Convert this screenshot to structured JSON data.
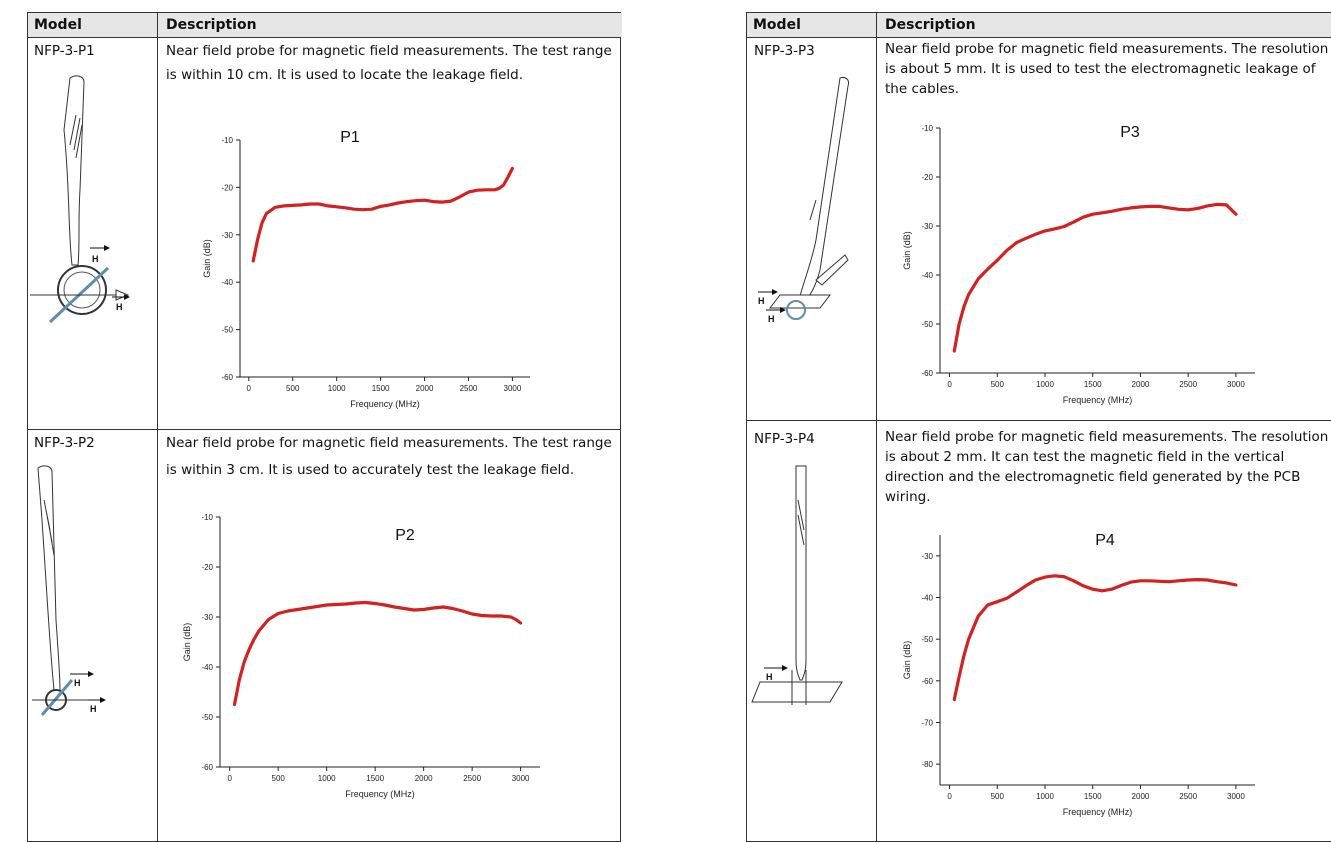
{
  "headers": {
    "model": "Model",
    "description": "Description"
  },
  "products": [
    {
      "model": "NFP-3-P1",
      "description": "Near field probe for magnetic field measurements. The test range is within 10 cm. It is used to locate the leakage field.",
      "desc_lines": [
        "Near field probe for magnetic field measurements. The test range",
        "is within 10 cm. It is used to locate the leakage field."
      ]
    },
    {
      "model": "NFP-3-P2",
      "description": "Near field probe for magnetic field measurements. The test range is within 3 cm. It is used to accurately test the leakage field.",
      "desc_lines": [
        "Near field probe for magnetic field measurements. The test range",
        "is within 3 cm. It is used to accurately test the leakage field."
      ]
    },
    {
      "model": "NFP-3-P3",
      "description": "Near field probe for magnetic field measurements. The resolution is about 5 mm. It is used to test the electromagnetic leakage of the cables.",
      "desc_lines": [
        "Near field probe for magnetic field measurements. The resolution",
        "is about 5 mm. It is used to test the electromagnetic leakage of",
        "the cables."
      ]
    },
    {
      "model": "NFP-3-P4",
      "description": "Near field probe for magnetic field measurements. The resolution is about 2 mm. It can test the magnetic field in the vertical direction and the electromagnetic field generated by the PCB wiring.",
      "desc_lines": [
        "Near field probe for magnetic field measurements. The resolution",
        "is about 2 mm. It can test the magnetic field in the vertical",
        "direction and the electromagnetic field generated by the PCB",
        "wiring."
      ]
    }
  ],
  "h_label": "H",
  "chart_data": [
    {
      "type": "line",
      "title": "P1",
      "xlabel": "Frequency (MHz)",
      "ylabel": "Gain (dB)",
      "xlim": [
        -100,
        3200
      ],
      "ylim": [
        -60,
        -10
      ],
      "xticks": [
        0,
        500,
        1000,
        1500,
        2000,
        2500,
        3000
      ],
      "yticks": [
        -10,
        -20,
        -30,
        -40,
        -50,
        -60
      ],
      "color": "#d42020",
      "grid": false,
      "x": [
        50,
        100,
        150,
        200,
        300,
        400,
        500,
        600,
        700,
        800,
        900,
        1000,
        1100,
        1200,
        1300,
        1400,
        1500,
        1600,
        1700,
        1800,
        1900,
        2000,
        2100,
        2200,
        2300,
        2400,
        2500,
        2600,
        2700,
        2800,
        2850,
        2900,
        2950,
        3000
      ],
      "y": [
        -35.5,
        -31,
        -27.5,
        -25.5,
        -24.2,
        -23.9,
        -23.8,
        -23.7,
        -23.5,
        -23.5,
        -23.9,
        -24.1,
        -24.3,
        -24.6,
        -24.7,
        -24.6,
        -24.0,
        -23.7,
        -23.3,
        -23.0,
        -22.8,
        -22.7,
        -23.0,
        -23.1,
        -22.9,
        -22.0,
        -21.0,
        -20.6,
        -20.5,
        -20.5,
        -20.2,
        -19.5,
        -17.8,
        -16.0
      ]
    },
    {
      "type": "line",
      "title": "P2",
      "xlabel": "Frequency (MHz)",
      "ylabel": "Gain (dB)",
      "xlim": [
        -100,
        3200
      ],
      "ylim": [
        -60,
        -10
      ],
      "xticks": [
        0,
        500,
        1000,
        1500,
        2000,
        2500,
        3000
      ],
      "yticks": [
        -10,
        -20,
        -30,
        -40,
        -50,
        -60
      ],
      "color": "#d42020",
      "grid": false,
      "x": [
        50,
        100,
        150,
        200,
        250,
        300,
        400,
        500,
        600,
        700,
        800,
        900,
        1000,
        1100,
        1200,
        1300,
        1400,
        1500,
        1600,
        1700,
        1800,
        1900,
        2000,
        2100,
        2200,
        2300,
        2400,
        2500,
        2600,
        2700,
        2800,
        2900,
        2950,
        3000
      ],
      "y": [
        -47.5,
        -42.5,
        -39,
        -36.5,
        -34.5,
        -32.8,
        -30.5,
        -29.3,
        -28.8,
        -28.5,
        -28.2,
        -27.9,
        -27.6,
        -27.5,
        -27.4,
        -27.2,
        -27.1,
        -27.3,
        -27.6,
        -28.0,
        -28.3,
        -28.6,
        -28.5,
        -28.2,
        -28.0,
        -28.3,
        -28.8,
        -29.4,
        -29.7,
        -29.8,
        -29.8,
        -30.0,
        -30.5,
        -31.2
      ]
    },
    {
      "type": "line",
      "title": "P3",
      "xlabel": "Frequency (MHz)",
      "ylabel": "Gain (dB)",
      "xlim": [
        -100,
        3200
      ],
      "ylim": [
        -60,
        -10
      ],
      "xticks": [
        0,
        500,
        1000,
        1500,
        2000,
        2500,
        3000
      ],
      "yticks": [
        -10,
        -20,
        -30,
        -40,
        -50,
        -60
      ],
      "color": "#d42020",
      "grid": false,
      "x": [
        50,
        100,
        150,
        200,
        300,
        400,
        500,
        600,
        700,
        800,
        900,
        1000,
        1100,
        1200,
        1300,
        1400,
        1500,
        1600,
        1700,
        1800,
        1900,
        2000,
        2100,
        2200,
        2300,
        2400,
        2500,
        2600,
        2700,
        2800,
        2900,
        3000
      ],
      "y": [
        -55.5,
        -50,
        -46.5,
        -44,
        -40.8,
        -38.8,
        -37.0,
        -35.0,
        -33.4,
        -32.5,
        -31.7,
        -31.0,
        -30.6,
        -30.1,
        -29.2,
        -28.2,
        -27.6,
        -27.3,
        -27.0,
        -26.6,
        -26.3,
        -26.1,
        -26.0,
        -26.0,
        -26.3,
        -26.6,
        -26.7,
        -26.4,
        -25.9,
        -25.6,
        -25.7,
        -27.6
      ]
    },
    {
      "type": "line",
      "title": "P4",
      "xlabel": "Frequency (MHz)",
      "ylabel": "Gain (dB)",
      "xlim": [
        -100,
        3200
      ],
      "ylim": [
        -85,
        -25
      ],
      "xticks": [
        0,
        500,
        1000,
        1500,
        2000,
        2500,
        3000
      ],
      "yticks": [
        -30,
        -40,
        -50,
        -60,
        -70,
        -80
      ],
      "color": "#d42020",
      "grid": false,
      "x": [
        50,
        100,
        150,
        200,
        300,
        400,
        500,
        600,
        700,
        800,
        900,
        1000,
        1100,
        1200,
        1300,
        1400,
        1500,
        1600,
        1700,
        1800,
        1900,
        2000,
        2100,
        2200,
        2300,
        2400,
        2500,
        2600,
        2700,
        2800,
        2900,
        3000
      ],
      "y": [
        -64.5,
        -59,
        -54,
        -50,
        -44.5,
        -41.8,
        -41.0,
        -40.2,
        -38.7,
        -37.2,
        -35.8,
        -35.1,
        -34.8,
        -35.0,
        -36.0,
        -37.2,
        -38.0,
        -38.4,
        -38.0,
        -37.1,
        -36.3,
        -36.0,
        -36.0,
        -36.1,
        -36.2,
        -36.0,
        -35.8,
        -35.7,
        -35.8,
        -36.2,
        -36.5,
        -37.0
      ]
    }
  ]
}
